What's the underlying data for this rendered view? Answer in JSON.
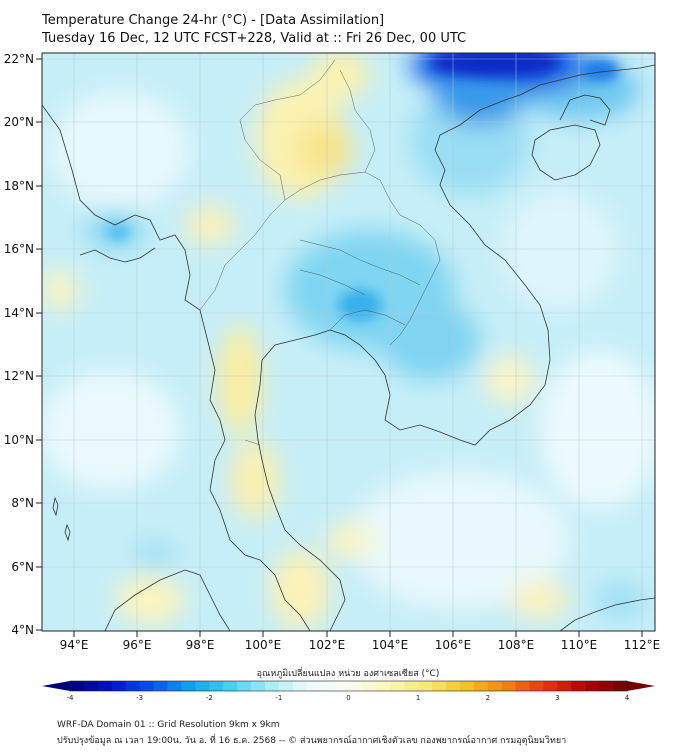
{
  "title": {
    "line1": "Temperature Change 24-hr (°C) - [Data Assimilation]",
    "line2": "Tuesday 16 Dec, 12 UTC FCST+228, Valid at :: Fri 26 Dec, 00 UTC"
  },
  "axes": {
    "lat_labels": [
      "22°N",
      "20°N",
      "18°N",
      "16°N",
      "14°N",
      "12°N",
      "10°N",
      "8°N",
      "6°N",
      "4°N"
    ],
    "lon_labels": [
      "94°E",
      "96°E",
      "98°E",
      "100°E",
      "102°E",
      "104°E",
      "106°E",
      "108°E",
      "110°E",
      "112°E"
    ]
  },
  "colorbar": {
    "title": "อุณหภูมิเปลี่ยนแปลง หน่วย องศาเซลเซียส (°C)",
    "ticks": [
      "-4",
      "-3",
      "-2",
      "-1",
      "0",
      "1",
      "2",
      "3",
      "4"
    ],
    "colors": [
      "#00007a",
      "#0010c8",
      "#0050f0",
      "#10a0f0",
      "#40d0f0",
      "#a8ecf8",
      "#f0fbfd",
      "#fafdf0",
      "#fbf6b8",
      "#f8e870",
      "#f4c020",
      "#f08010",
      "#e83010",
      "#b00000",
      "#700000"
    ]
  },
  "footer": {
    "line1": "WRF-DA Domain 01 :: Grid Resolution 9km x 9km",
    "line2": "ปรับปรุงข้อมูล ณ เวลา 19:00น. วัน อ. ที่ 16 ธ.ค. 2568 -- © ส่วนพยากรณ์อากาศเชิงตัวเลข กองพยากรณ์อากาศ กรมอุตุนิยมวิทยา"
  }
}
